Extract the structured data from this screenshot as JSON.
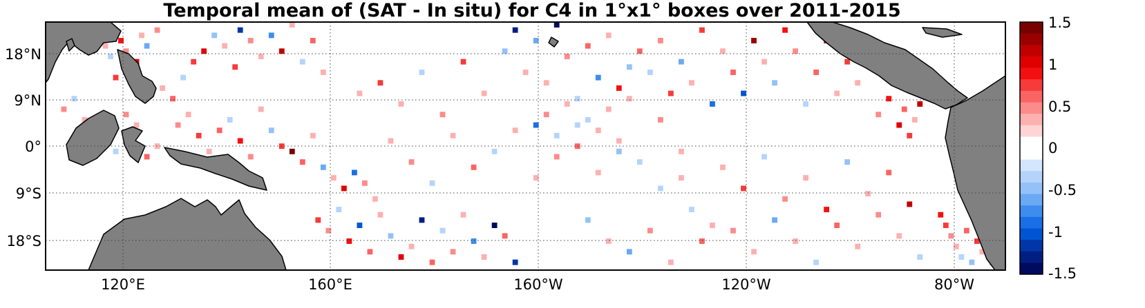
{
  "title": "Temporal mean of (SAT - In situ) for C4 in 1°x1° boxes over 2011-2015",
  "chart_data": {
    "type": "heatmap",
    "title": "Temporal mean of (SAT - In situ) for C4 in 1°x1° boxes over 2011-2015",
    "grid": true,
    "x_range_deg_east": [
      110,
      295
    ],
    "y_range_deg": [
      -23,
      24
    ],
    "cell_size_deg": 1,
    "x_ticks": [
      {
        "value": 120,
        "label": "120°E"
      },
      {
        "value": 160,
        "label": "160°E"
      },
      {
        "value": 200,
        "label": "160°W"
      },
      {
        "value": 240,
        "label": "120°W"
      },
      {
        "value": 280,
        "label": "80°W"
      }
    ],
    "y_ticks": [
      {
        "value": 18,
        "label": "18°N"
      },
      {
        "value": 9,
        "label": "9°N"
      },
      {
        "value": 0,
        "label": "0°"
      },
      {
        "value": -9,
        "label": "9°S"
      },
      {
        "value": -18,
        "label": "18°S"
      }
    ],
    "colorbar": {
      "range": [
        -1.5,
        1.5
      ],
      "ticks": [
        "1.5",
        "1",
        "0.5",
        "0",
        "-0.5",
        "-1",
        "-1.5"
      ],
      "tick_values": [
        1.5,
        1,
        0.5,
        0,
        -0.5,
        -1,
        -1.5
      ],
      "colors_top_to_bottom": [
        "#780000",
        "#9a0000",
        "#c00000",
        "#e00000",
        "#f41010",
        "#f73a3a",
        "#fa6464",
        "#fc8b8b",
        "#fdb0b0",
        "#fed4d4",
        "#ffffff",
        "#ffffff",
        "#d4e6fd",
        "#b4d4fb",
        "#94c2f8",
        "#6aa9f4",
        "#3f8cef",
        "#1a6fe6",
        "#0055d2",
        "#0036a8",
        "#001e82",
        "#000a5e"
      ]
    },
    "land_color": "#808080",
    "cells": [
      [
        118,
        20,
        0.9
      ],
      [
        119,
        21,
        0.6
      ],
      [
        121,
        19,
        0.3
      ],
      [
        122,
        17,
        -0.4
      ],
      [
        124,
        20,
        0.9
      ],
      [
        125,
        18,
        0.5
      ],
      [
        127,
        16,
        1.0
      ],
      [
        128,
        21,
        0.4
      ],
      [
        129,
        19,
        -0.6
      ],
      [
        131,
        22,
        0.5
      ],
      [
        123,
        13,
        0.8
      ],
      [
        126,
        12,
        0.4
      ],
      [
        129,
        10,
        0.9
      ],
      [
        132,
        11,
        0.3
      ],
      [
        134,
        9,
        0.6
      ],
      [
        136,
        13,
        -0.3
      ],
      [
        138,
        16,
        0.7
      ],
      [
        140,
        18,
        1.0
      ],
      [
        142,
        21,
        -0.5
      ],
      [
        144,
        19,
        0.4
      ],
      [
        146,
        15,
        0.8
      ],
      [
        147,
        22,
        -1.2
      ],
      [
        149,
        20,
        0.5
      ],
      [
        151,
        17,
        0.3
      ],
      [
        153,
        21,
        -0.8
      ],
      [
        155,
        18,
        1.1
      ],
      [
        157,
        23,
        0.4
      ],
      [
        159,
        16,
        -0.4
      ],
      [
        161,
        20,
        0.6
      ],
      [
        163,
        14,
        0.3
      ],
      [
        135,
        4,
        0.5
      ],
      [
        137,
        6,
        0.3
      ],
      [
        139,
        2,
        0.8
      ],
      [
        141,
        -1,
        0.4
      ],
      [
        143,
        3,
        0.6
      ],
      [
        145,
        5,
        -0.3
      ],
      [
        147,
        1,
        0.9
      ],
      [
        149,
        -2,
        0.5
      ],
      [
        151,
        7,
        0.3
      ],
      [
        153,
        3,
        -0.5
      ],
      [
        155,
        0,
        0.7
      ],
      [
        157,
        -1,
        1.4
      ],
      [
        159,
        -3,
        0.6
      ],
      [
        161,
        2,
        0.3
      ],
      [
        163,
        -4,
        -0.6
      ],
      [
        165,
        -6,
        0.4
      ],
      [
        167,
        -8,
        1.0
      ],
      [
        169,
        -5,
        -0.9
      ],
      [
        171,
        -7,
        0.5
      ],
      [
        173,
        -10,
        0.3
      ],
      [
        162,
        -14,
        0.8
      ],
      [
        164,
        -16,
        0.5
      ],
      [
        166,
        -12,
        -0.4
      ],
      [
        168,
        -18,
        0.9
      ],
      [
        170,
        -15,
        -1.0
      ],
      [
        172,
        -20,
        0.6
      ],
      [
        174,
        -13,
        0.3
      ],
      [
        176,
        -17,
        -0.5
      ],
      [
        178,
        -21,
        1.0
      ],
      [
        180,
        -19,
        0.4
      ],
      [
        182,
        -14,
        -1.3
      ],
      [
        184,
        -22,
        0.6
      ],
      [
        186,
        -16,
        -0.4
      ],
      [
        188,
        -20,
        0.5
      ],
      [
        190,
        -13,
        0.3
      ],
      [
        192,
        -18,
        -0.7
      ],
      [
        194,
        -21,
        0.4
      ],
      [
        196,
        -15,
        -1.4
      ],
      [
        198,
        -17,
        0.6
      ],
      [
        200,
        -22,
        -1.1
      ],
      [
        170,
        10,
        0.4
      ],
      [
        174,
        12,
        0.7
      ],
      [
        178,
        8,
        0.3
      ],
      [
        182,
        14,
        -0.4
      ],
      [
        186,
        6,
        0.5
      ],
      [
        190,
        16,
        0.8
      ],
      [
        194,
        10,
        0.3
      ],
      [
        198,
        18,
        -0.5
      ],
      [
        200,
        22,
        -1.3
      ],
      [
        202,
        14,
        0.4
      ],
      [
        204,
        20,
        -0.6
      ],
      [
        206,
        12,
        0.3
      ],
      [
        208,
        23,
        -1.5
      ],
      [
        210,
        17,
        0.5
      ],
      [
        212,
        9,
        -0.3
      ],
      [
        214,
        19,
        0.6
      ],
      [
        216,
        13,
        -0.8
      ],
      [
        218,
        21,
        0.4
      ],
      [
        220,
        11,
        0.9
      ],
      [
        222,
        15,
        -0.5
      ],
      [
        176,
        1,
        0.3
      ],
      [
        180,
        -3,
        0.5
      ],
      [
        184,
        -7,
        -0.4
      ],
      [
        188,
        2,
        0.3
      ],
      [
        192,
        -4,
        0.6
      ],
      [
        196,
        -1,
        -0.3
      ],
      [
        200,
        3,
        0.4
      ],
      [
        204,
        -6,
        0.3
      ],
      [
        208,
        -2,
        0.5
      ],
      [
        212,
        4,
        -0.4
      ],
      [
        216,
        -5,
        0.3
      ],
      [
        220,
        1,
        0.4
      ],
      [
        224,
        -3,
        -0.3
      ],
      [
        228,
        5,
        0.5
      ],
      [
        232,
        -1,
        0.3
      ],
      [
        224,
        18,
        0.6
      ],
      [
        226,
        14,
        -0.4
      ],
      [
        228,
        20,
        0.5
      ],
      [
        230,
        10,
        0.8
      ],
      [
        232,
        16,
        -0.6
      ],
      [
        234,
        12,
        0.4
      ],
      [
        236,
        22,
        0.7
      ],
      [
        238,
        8,
        -0.9
      ],
      [
        240,
        18,
        0.3
      ],
      [
        242,
        14,
        0.6
      ],
      [
        244,
        10,
        -1.0
      ],
      [
        246,
        20,
        1.3
      ],
      [
        248,
        16,
        0.4
      ],
      [
        250,
        12,
        -0.5
      ],
      [
        252,
        22,
        0.9
      ],
      [
        254,
        18,
        0.5
      ],
      [
        256,
        8,
        -0.4
      ],
      [
        258,
        14,
        0.6
      ],
      [
        260,
        20,
        1.2
      ],
      [
        262,
        10,
        0.4
      ],
      [
        264,
        16,
        0.7
      ],
      [
        266,
        12,
        0.3
      ],
      [
        268,
        18,
        -0.3
      ],
      [
        270,
        6,
        0.5
      ],
      [
        272,
        9,
        0.9
      ],
      [
        274,
        4,
        1.0
      ],
      [
        275,
        7,
        0.6
      ],
      [
        276,
        2,
        0.8
      ],
      [
        277,
        5,
        0.4
      ],
      [
        278,
        8,
        1.2
      ],
      [
        240,
        -4,
        0.4
      ],
      [
        244,
        -8,
        0.8
      ],
      [
        248,
        -2,
        -0.4
      ],
      [
        252,
        -10,
        0.5
      ],
      [
        256,
        -6,
        0.3
      ],
      [
        260,
        -12,
        0.9
      ],
      [
        264,
        -3,
        -0.5
      ],
      [
        268,
        -9,
        0.4
      ],
      [
        272,
        -5,
        0.6
      ],
      [
        276,
        -11,
        1.1
      ],
      [
        242,
        -16,
        0.5
      ],
      [
        246,
        -20,
        0.3
      ],
      [
        250,
        -14,
        -0.6
      ],
      [
        254,
        -18,
        0.4
      ],
      [
        258,
        -22,
        -0.4
      ],
      [
        262,
        -15,
        0.6
      ],
      [
        266,
        -19,
        0.3
      ],
      [
        270,
        -13,
        0.5
      ],
      [
        274,
        -17,
        0.4
      ],
      [
        278,
        -21,
        -0.3
      ],
      [
        282,
        -13,
        0.9
      ],
      [
        283,
        -15,
        0.7
      ],
      [
        284,
        -17,
        0.5
      ],
      [
        285,
        -19,
        0.4
      ],
      [
        286,
        -21,
        -0.4
      ],
      [
        287,
        -16,
        0.6
      ],
      [
        288,
        -22,
        -0.5
      ],
      [
        289,
        -18,
        0.8
      ],
      [
        290,
        -20,
        0.4
      ],
      [
        292,
        -22,
        1.1
      ],
      [
        113,
        7,
        0.5
      ],
      [
        115,
        9,
        -0.3
      ],
      [
        117,
        5,
        0.4
      ],
      [
        119,
        3,
        0.7
      ],
      [
        121,
        1,
        0.3
      ],
      [
        123,
        -1,
        -0.4
      ],
      [
        125,
        6,
        0.5
      ],
      [
        127,
        4,
        0.3
      ],
      [
        129,
        -2,
        0.6
      ],
      [
        131,
        0,
        0.4
      ],
      [
        214,
        -14,
        -0.5
      ],
      [
        218,
        -18,
        0.4
      ],
      [
        222,
        -20,
        -0.6
      ],
      [
        226,
        -16,
        0.5
      ],
      [
        230,
        -22,
        0.3
      ],
      [
        234,
        -12,
        -0.4
      ],
      [
        236,
        -18,
        0.6
      ],
      [
        238,
        -15,
        0.3
      ],
      [
        228,
        -8,
        -0.3
      ],
      [
        232,
        -6,
        0.4
      ],
      [
        204,
        4,
        -0.9
      ],
      [
        206,
        6,
        0.5
      ],
      [
        208,
        2,
        -0.4
      ],
      [
        210,
        8,
        0.3
      ],
      [
        212,
        0,
        0.6
      ],
      [
        214,
        5,
        -0.3
      ],
      [
        216,
        3,
        0.4
      ],
      [
        218,
        7,
        0.3
      ],
      [
        220,
        -1,
        -0.5
      ],
      [
        222,
        9,
        0.4
      ]
    ]
  }
}
